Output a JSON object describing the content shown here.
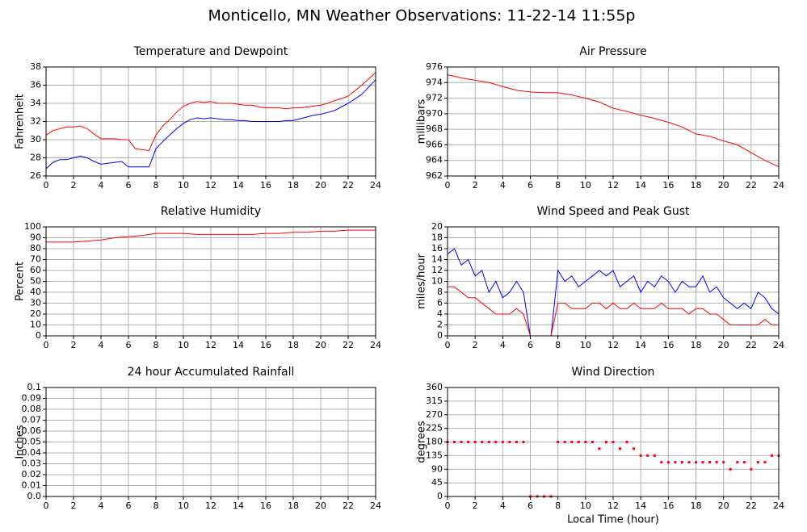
{
  "title": "Monticello, MN Weather Observations: 11-22-14 11:55p",
  "chart_data": [
    {
      "type": "line",
      "title": "Temperature and Dewpoint",
      "y_label": "Fahrenheit",
      "grid": true,
      "xlim": [
        0,
        24
      ],
      "xticks": [
        0,
        2,
        4,
        6,
        8,
        10,
        12,
        14,
        16,
        18,
        20,
        22,
        24
      ],
      "ylim": [
        26,
        38
      ],
      "yticks": [
        26,
        28,
        30,
        32,
        34,
        36,
        38
      ],
      "x": [
        0,
        0.5,
        1,
        1.5,
        2,
        2.5,
        3,
        3.5,
        4,
        4.5,
        5,
        5.5,
        6,
        6.5,
        7,
        7.5,
        8,
        8.5,
        9,
        9.5,
        10,
        10.5,
        11,
        11.5,
        12,
        12.5,
        13,
        13.5,
        14,
        14.5,
        15,
        15.5,
        16,
        16.5,
        17,
        17.5,
        18,
        18.5,
        19,
        19.5,
        20,
        20.5,
        21,
        21.5,
        22,
        22.5,
        23,
        23.5,
        24
      ],
      "series": [
        {
          "color": "#ff0000",
          "values": [
            30.5,
            31,
            31.2,
            31.4,
            31.4,
            31.5,
            31.2,
            30.6,
            30.1,
            30.1,
            30.1,
            30.0,
            30.0,
            29.0,
            28.9,
            28.8,
            30.5,
            31.5,
            32.2,
            33.0,
            33.7,
            34.0,
            34.2,
            34.1,
            34.2,
            34.0,
            34.0,
            34.0,
            33.9,
            33.8,
            33.8,
            33.6,
            33.5,
            33.5,
            33.5,
            33.4,
            33.5,
            33.5,
            33.6,
            33.7,
            33.8,
            34.0,
            34.3,
            34.5,
            34.8,
            35.4,
            36.0,
            36.7,
            37.4
          ]
        },
        {
          "color": "#0000ff",
          "values": [
            26.8,
            27.5,
            27.8,
            27.8,
            28.0,
            28.2,
            28.0,
            27.6,
            27.3,
            27.4,
            27.5,
            27.6,
            27.0,
            27.0,
            27.0,
            27.0,
            29.0,
            29.8,
            30.5,
            31.2,
            31.8,
            32.2,
            32.4,
            32.3,
            32.4,
            32.3,
            32.2,
            32.2,
            32.1,
            32.1,
            32.0,
            32.0,
            32.0,
            32.0,
            32.0,
            32.1,
            32.1,
            32.3,
            32.5,
            32.7,
            32.8,
            33.0,
            33.2,
            33.6,
            34.0,
            34.5,
            35.0,
            35.8,
            36.6
          ]
        }
      ]
    },
    {
      "type": "line",
      "title": "Air Pressure",
      "y_label": "millibars",
      "grid": true,
      "xlim": [
        0,
        24
      ],
      "xticks": [
        0,
        2,
        4,
        6,
        8,
        10,
        12,
        14,
        16,
        18,
        20,
        22,
        24
      ],
      "ylim": [
        962,
        976
      ],
      "yticks": [
        962,
        964,
        966,
        968,
        970,
        972,
        974,
        976
      ],
      "x": [
        0,
        1,
        2,
        3,
        4,
        5,
        6,
        7,
        8,
        9,
        10,
        11,
        12,
        13,
        14,
        15,
        16,
        17,
        18,
        19,
        20,
        21,
        22,
        23,
        24
      ],
      "series": [
        {
          "color": "#ff0000",
          "values": [
            975.0,
            974.6,
            974.3,
            974.0,
            973.5,
            973.0,
            972.8,
            972.7,
            972.7,
            972.4,
            972.0,
            971.5,
            970.7,
            970.3,
            969.8,
            969.4,
            968.9,
            968.3,
            967.4,
            967.1,
            966.5,
            966.0,
            965.0,
            964.0,
            963.2
          ]
        }
      ]
    },
    {
      "type": "line",
      "title": "Relative Humidity",
      "y_label": "Percent",
      "grid": true,
      "xlim": [
        0,
        24
      ],
      "xticks": [
        0,
        2,
        4,
        6,
        8,
        10,
        12,
        14,
        16,
        18,
        20,
        22,
        24
      ],
      "ylim": [
        0,
        100
      ],
      "yticks": [
        0,
        10,
        20,
        30,
        40,
        50,
        60,
        70,
        80,
        90,
        100
      ],
      "x": [
        0,
        1,
        2,
        3,
        4,
        5,
        6,
        7,
        8,
        9,
        10,
        11,
        12,
        13,
        14,
        15,
        16,
        17,
        18,
        19,
        20,
        21,
        22,
        23,
        24
      ],
      "series": [
        {
          "color": "#ff0000",
          "values": [
            86,
            86,
            86,
            87,
            88,
            90,
            91,
            92,
            94,
            94,
            94,
            93,
            93,
            93,
            93,
            93,
            94,
            94,
            95,
            95,
            96,
            96,
            97,
            97,
            97
          ]
        }
      ]
    },
    {
      "type": "line",
      "title": "Wind Speed and Peak Gust",
      "y_label": "miles/hour",
      "grid": true,
      "xlim": [
        0,
        24
      ],
      "xticks": [
        0,
        2,
        4,
        6,
        8,
        10,
        12,
        14,
        16,
        18,
        20,
        22,
        24
      ],
      "ylim": [
        0,
        20
      ],
      "yticks": [
        0,
        2,
        4,
        6,
        8,
        10,
        12,
        14,
        16,
        18,
        20
      ],
      "x": [
        0,
        0.5,
        1,
        1.5,
        2,
        2.5,
        3,
        3.5,
        4,
        4.5,
        5,
        5.5,
        6,
        6.5,
        7,
        7.5,
        8,
        8.5,
        9,
        9.5,
        10,
        10.5,
        11,
        11.5,
        12,
        12.5,
        13,
        13.5,
        14,
        14.5,
        15,
        15.5,
        16,
        16.5,
        17,
        17.5,
        18,
        18.5,
        19,
        19.5,
        20,
        20.5,
        21,
        21.5,
        22,
        22.5,
        23,
        23.5,
        24
      ],
      "series": [
        {
          "color": "#0000ff",
          "values": [
            15,
            16,
            13,
            14,
            11,
            12,
            8,
            10,
            7,
            8,
            10,
            8,
            0,
            0,
            0,
            0,
            12,
            10,
            11,
            9,
            10,
            11,
            12,
            11,
            12,
            9,
            10,
            11,
            8,
            10,
            9,
            11,
            10,
            8,
            10,
            9,
            9,
            11,
            8,
            9,
            7,
            6,
            5,
            6,
            5,
            8,
            7,
            5,
            4
          ]
        },
        {
          "color": "#ff0000",
          "values": [
            9,
            9,
            8,
            7,
            7,
            6,
            5,
            4,
            4,
            4,
            5,
            4,
            0,
            0,
            0,
            0,
            6,
            6,
            5,
            5,
            5,
            6,
            6,
            5,
            6,
            5,
            5,
            6,
            5,
            5,
            5,
            6,
            5,
            5,
            5,
            4,
            5,
            5,
            4,
            4,
            3,
            2,
            2,
            2,
            2,
            2,
            3,
            2,
            2
          ]
        }
      ]
    },
    {
      "type": "line",
      "title": "24 hour Accumulated Rainfall",
      "y_label": "Inches",
      "grid": true,
      "xlim": [
        0,
        24
      ],
      "xticks": [
        0,
        2,
        4,
        6,
        8,
        10,
        12,
        14,
        16,
        18,
        20,
        22,
        24
      ],
      "ylim": [
        0,
        0.1
      ],
      "yticks": [
        {
          "value": 0,
          "label": "0.0"
        },
        0.01,
        0.02,
        0.03,
        0.04,
        0.05,
        0.06,
        0.07,
        0.08,
        0.09,
        0.1
      ],
      "x": [
        0,
        1,
        2,
        3,
        4,
        5,
        6,
        7,
        8,
        9,
        10,
        11,
        12,
        13,
        14,
        15,
        16,
        17,
        18,
        19,
        20,
        21,
        22,
        23,
        24
      ],
      "series": [
        {
          "color": "#ff0000",
          "values": [
            0,
            0,
            0,
            0,
            0,
            0,
            0,
            0,
            0,
            0,
            0,
            0,
            0,
            0,
            0,
            0,
            0,
            0,
            0,
            0,
            0,
            0,
            0,
            0,
            0
          ]
        }
      ]
    },
    {
      "type": "scatter",
      "title": "Wind Direction",
      "y_label": "degrees",
      "x_label": "Local Time (hour)",
      "grid": true,
      "xlim": [
        0,
        24
      ],
      "xticks": [
        0,
        2,
        4,
        6,
        8,
        10,
        12,
        14,
        16,
        18,
        20,
        22,
        24
      ],
      "ylim": [
        0,
        360
      ],
      "yticks": [
        0,
        45,
        90,
        135,
        180,
        225,
        270,
        315,
        360
      ],
      "x": [
        0,
        0.5,
        1,
        1.5,
        2,
        2.5,
        3,
        3.5,
        4,
        4.5,
        5,
        5.5,
        6,
        6.5,
        7,
        7.5,
        8,
        8.5,
        9,
        9.5,
        10,
        10.5,
        11,
        11.5,
        12,
        12.5,
        13,
        13.5,
        14,
        14.5,
        15,
        15.5,
        16,
        16.5,
        17,
        17.5,
        18,
        18.5,
        19,
        19.5,
        20,
        20.5,
        21,
        21.5,
        22,
        22.5,
        23,
        23.5,
        24
      ],
      "series": [
        {
          "color": "#ff0000",
          "values": [
            180,
            180,
            180,
            180,
            180,
            180,
            180,
            180,
            180,
            180,
            180,
            180,
            0,
            0,
            0,
            0,
            180,
            180,
            180,
            180,
            180,
            180,
            158,
            180,
            180,
            158,
            180,
            158,
            135,
            135,
            135,
            113,
            113,
            113,
            113,
            113,
            113,
            113,
            113,
            113,
            113,
            90,
            113,
            113,
            90,
            113,
            113,
            135,
            135
          ]
        }
      ]
    }
  ]
}
